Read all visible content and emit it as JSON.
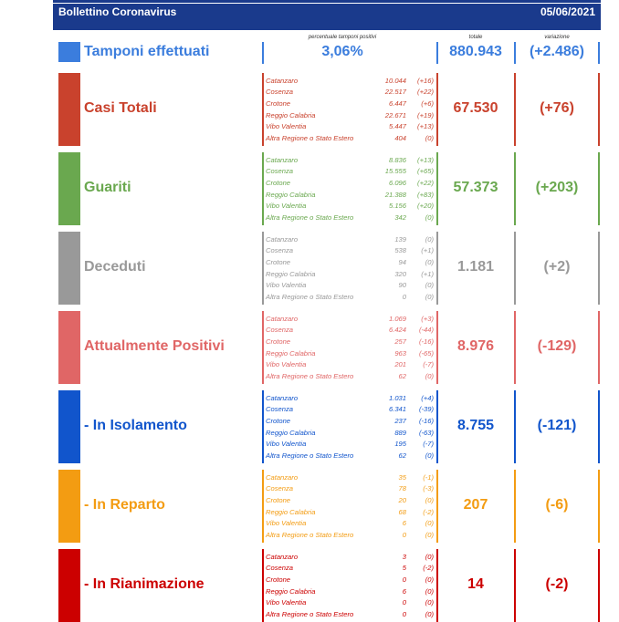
{
  "header": {
    "title": "Bollettino Coronavirus",
    "date": "05/06/2021"
  },
  "labels": {
    "percent": "percentuale tamponi positivi",
    "total": "totale",
    "variation": "variazione"
  },
  "tamponi": {
    "title": "Tamponi effettuati",
    "percent": "3,06%",
    "total": "880.943",
    "variation": "(+2.486)",
    "color": "#3b7ddd"
  },
  "provinces": [
    "Catanzaro",
    "Cosenza",
    "Crotone",
    "Reggio Calabria",
    "Vibo Valentia",
    "Altra Regione o Stato Estero"
  ],
  "categories": [
    {
      "title": "Casi Totali",
      "color": "#c9422d",
      "total": "67.530",
      "variation": "(+76)",
      "values": [
        "10.044",
        "22.517",
        "6.447",
        "22.671",
        "5.447",
        "404"
      ],
      "changes": [
        "(+16)",
        "(+22)",
        "(+6)",
        "(+19)",
        "(+13)",
        "(0)"
      ]
    },
    {
      "title": "Guariti",
      "color": "#6aa84f",
      "total": "57.373",
      "variation": "(+203)",
      "values": [
        "8.836",
        "15.555",
        "6.096",
        "21.388",
        "5.156",
        "342"
      ],
      "changes": [
        "(+13)",
        "(+65)",
        "(+22)",
        "(+83)",
        "(+20)",
        "(0)"
      ]
    },
    {
      "title": "Deceduti",
      "color": "#999999",
      "total": "1.181",
      "variation": "(+2)",
      "values": [
        "139",
        "538",
        "94",
        "320",
        "90",
        "0"
      ],
      "changes": [
        "(0)",
        "(+1)",
        "(0)",
        "(+1)",
        "(0)",
        "(0)"
      ]
    },
    {
      "title": "Attualmente Positivi",
      "color": "#e06666",
      "total": "8.976",
      "variation": "(-129)",
      "values": [
        "1.069",
        "6.424",
        "257",
        "963",
        "201",
        "62"
      ],
      "changes": [
        "(+3)",
        "(-44)",
        "(-16)",
        "(-65)",
        "(-7)",
        "(0)"
      ]
    },
    {
      "title": "- In Isolamento",
      "color": "#1155cc",
      "total": "8.755",
      "variation": "(-121)",
      "values": [
        "1.031",
        "6.341",
        "237",
        "889",
        "195",
        "62"
      ],
      "changes": [
        "(+4)",
        "(-39)",
        "(-16)",
        "(-63)",
        "(-7)",
        "(0)"
      ]
    },
    {
      "title": "- In Reparto",
      "color": "#f39c12",
      "total": "207",
      "variation": "(-6)",
      "values": [
        "35",
        "78",
        "20",
        "68",
        "6",
        "0"
      ],
      "changes": [
        "(-1)",
        "(-3)",
        "(0)",
        "(-2)",
        "(0)",
        "(0)"
      ]
    },
    {
      "title": "- In Rianimazione",
      "color": "#cc0000",
      "total": "14",
      "variation": "(-2)",
      "values": [
        "3",
        "5",
        "0",
        "6",
        "0",
        "0"
      ],
      "changes": [
        "(0)",
        "(-2)",
        "(0)",
        "(0)",
        "(0)",
        "(0)"
      ]
    }
  ]
}
